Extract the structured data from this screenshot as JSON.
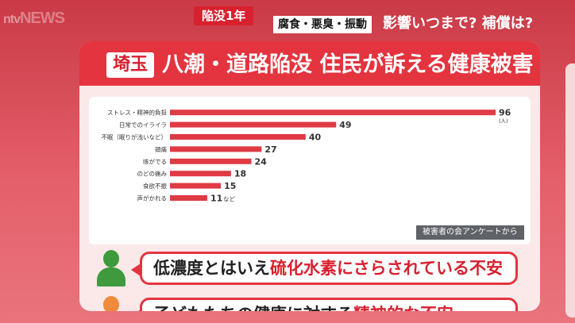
{
  "header": {
    "logo": "NEWS",
    "logo_prefix": "ntv",
    "topic_tag": "陥没1年",
    "sub_tag": "腐食・悪臭・振動",
    "headline": "影響いつまで? 補償は?"
  },
  "panel": {
    "badge": "埼玉",
    "title": "八潮・道路陥没 住民が訴える健康被害"
  },
  "chart_data": {
    "type": "bar",
    "orientation": "horizontal",
    "categories": [
      "ストレス・精神的負担",
      "日常でのイライラ",
      "不眠（眠りが浅いなど）",
      "頭痛",
      "咳がでる",
      "のどの痛み",
      "食欲不振",
      "声がかれる"
    ],
    "values": [
      96,
      49,
      40,
      27,
      24,
      18,
      15,
      11
    ],
    "unit": "(人)",
    "trailing_note": "など",
    "source": "被害者の会アンケートから",
    "xlim": [
      0,
      96
    ],
    "bar_color": "#e03a45"
  },
  "voices": [
    {
      "text_before": "低濃度とはいえ",
      "highlight": "硫化水素にさらされている不安",
      "text_after": "",
      "avatar_color": "#3e9a3c"
    },
    {
      "text_before": "子どもたちの健康に対する",
      "highlight": "精神的な不安",
      "text_after": "",
      "avatar_color": "#f08a3c"
    }
  ]
}
